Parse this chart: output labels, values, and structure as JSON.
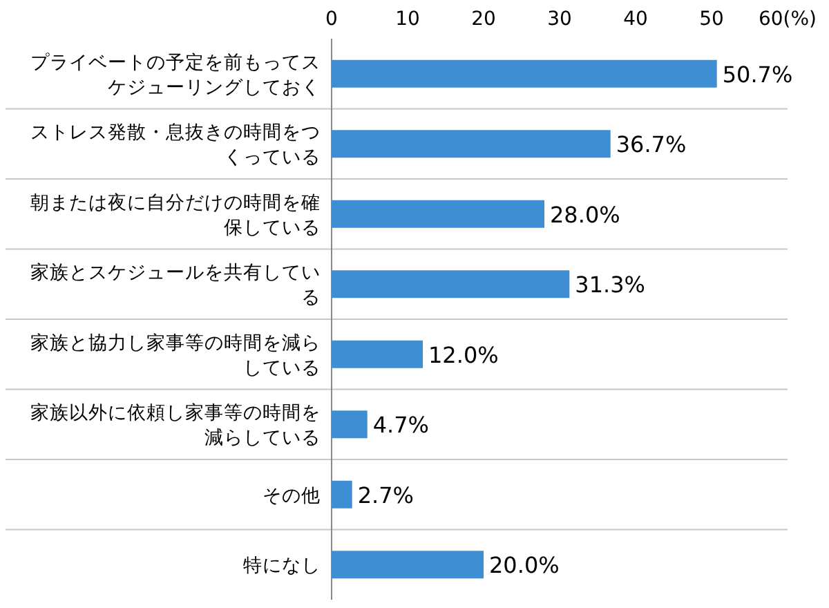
{
  "chart_data": {
    "type": "bar",
    "orientation": "horizontal",
    "categories": [
      "プライベートの予定を前もってスケジューリングしておく",
      "ストレス発散・息抜きの時間をつくっている",
      "朝または夜に自分だけの時間を確保している",
      "家族とスケジュールを共有している",
      "家族と協力し家事等の時間を減らしている",
      "家族以外に依頼し家事等の時間を減らしている",
      "その他",
      "特になし"
    ],
    "values": [
      50.7,
      36.7,
      28.0,
      31.3,
      12.0,
      4.7,
      2.7,
      20.0
    ],
    "value_labels": [
      "50.7%",
      "36.7%",
      "28.0%",
      "31.3%",
      "12.0%",
      "4.7%",
      "2.7%",
      "20.0%"
    ],
    "color": "#3f8ed4",
    "xlim": [
      0,
      60
    ],
    "xticks": [
      0,
      10,
      20,
      30,
      40,
      50,
      {
        "value": 60,
        "label": "60(%)"
      }
    ],
    "grid": "y"
  }
}
